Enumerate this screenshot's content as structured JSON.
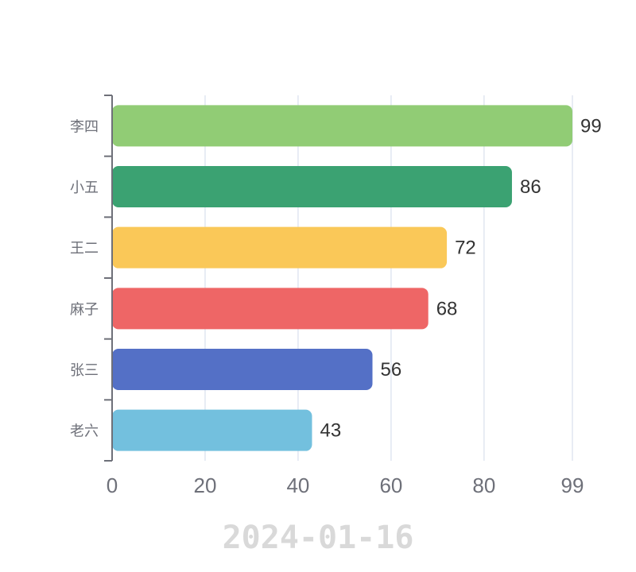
{
  "chart_data": {
    "type": "bar",
    "orientation": "horizontal",
    "categories": [
      "李四",
      "小五",
      "王二",
      "麻子",
      "张三",
      "老六"
    ],
    "values": [
      99,
      86,
      72,
      68,
      56,
      43
    ],
    "colors": [
      "#91cc75",
      "#3ba272",
      "#fac858",
      "#ee6666",
      "#5470c6",
      "#73c0de"
    ],
    "x_ticks": [
      0,
      20,
      40,
      60,
      80,
      99
    ],
    "xlim": [
      0,
      99
    ],
    "grid": "vertical",
    "show_value_labels": true
  },
  "footer": {
    "date": "2024-01-16"
  }
}
